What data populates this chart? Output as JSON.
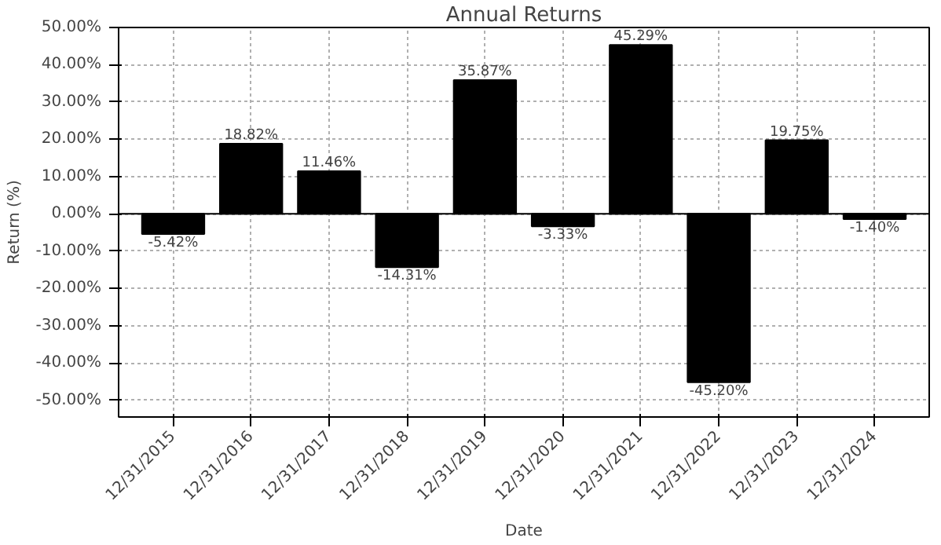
{
  "chart_data": {
    "type": "bar",
    "title": "Annual Returns",
    "xlabel": "Date",
    "ylabel": "Return (%)",
    "categories": [
      "12/31/2015",
      "12/31/2016",
      "12/31/2017",
      "12/31/2018",
      "12/31/2019",
      "12/31/2020",
      "12/31/2021",
      "12/31/2022",
      "12/31/2023",
      "12/31/2024"
    ],
    "values": [
      -5.42,
      18.82,
      11.46,
      -14.31,
      35.87,
      -3.33,
      45.29,
      -45.2,
      19.75,
      -1.4
    ],
    "value_labels": [
      "-5.42%",
      "18.82%",
      "11.46%",
      "-14.31%",
      "35.87%",
      "-3.33%",
      "45.29%",
      "-45.20%",
      "19.75%",
      "-1.40%"
    ],
    "color": "#000000",
    "ylim": [
      -54.5,
      50
    ],
    "yticks": [
      {
        "value": -50,
        "label": "-50.00%"
      },
      {
        "value": -40,
        "label": "-40.00%"
      },
      {
        "value": -30,
        "label": "-30.00%"
      },
      {
        "value": -20,
        "label": "-20.00%"
      },
      {
        "value": -10,
        "label": "-10.00%"
      },
      {
        "value": 0,
        "label": "0.00%"
      },
      {
        "value": 10,
        "label": "10.00%"
      },
      {
        "value": 20,
        "label": "20.00%"
      },
      {
        "value": 30,
        "label": "30.00%"
      },
      {
        "value": 40,
        "label": "40.00%"
      },
      {
        "value": 50,
        "label": "50.00%"
      }
    ],
    "ref_lines": [
      {
        "axis": "y",
        "value": 0,
        "color": "#000000"
      }
    ],
    "grid": true
  }
}
